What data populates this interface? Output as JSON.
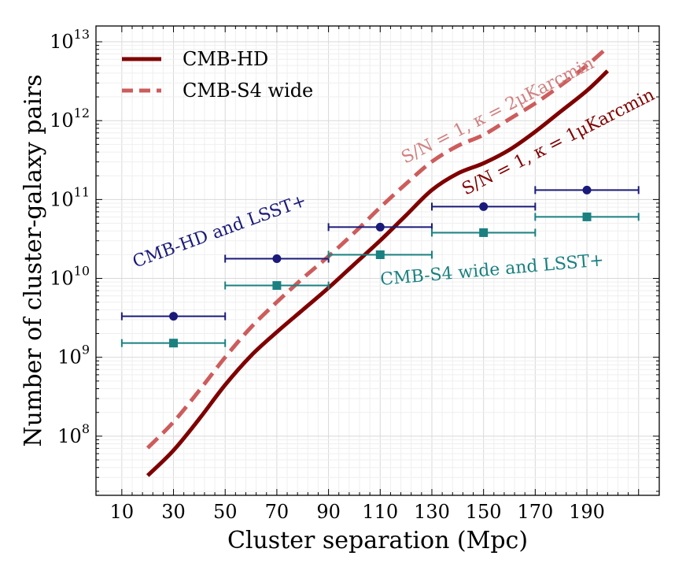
{
  "chart_data": {
    "type": "line",
    "title": "",
    "xlabel": "Cluster separation (Mpc)",
    "ylabel": "Number of cluster-galaxy pairs",
    "xlim": [
      0,
      218
    ],
    "ylim_log10": [
      7.25,
      13.2
    ],
    "yscale": "log",
    "grid": true,
    "legend_position": "top-left",
    "x_ticks": [
      10,
      30,
      50,
      70,
      90,
      110,
      130,
      150,
      170,
      190
    ],
    "y_ticks": [
      {
        "base": "10",
        "exp": "8",
        "value": 8
      },
      {
        "base": "10",
        "exp": "9",
        "value": 9
      },
      {
        "base": "10",
        "exp": "10",
        "value": 10
      },
      {
        "base": "10",
        "exp": "11",
        "value": 11
      },
      {
        "base": "10",
        "exp": "12",
        "value": 12
      },
      {
        "base": "10",
        "exp": "13",
        "value": 13
      }
    ],
    "series": [
      {
        "name": "CMB-HD",
        "style": "solid",
        "color": "#7f0000",
        "x": [
          20,
          30,
          40,
          50,
          60,
          70,
          80,
          90,
          100,
          110,
          120,
          130,
          140,
          150,
          160,
          170,
          180,
          190,
          198
        ],
        "log10": [
          7.5,
          7.82,
          8.22,
          8.65,
          9.02,
          9.32,
          9.6,
          9.88,
          10.18,
          10.48,
          10.8,
          11.12,
          11.33,
          11.46,
          11.63,
          11.86,
          12.12,
          12.38,
          12.63
        ]
      },
      {
        "name": "CMB-S4 wide",
        "style": "dashed",
        "color": "#cd5c5c",
        "x": [
          20,
          30,
          40,
          50,
          60,
          70,
          80,
          90,
          100,
          110,
          120,
          130,
          140,
          150,
          160,
          170,
          180,
          190,
          198
        ],
        "log10": [
          7.85,
          8.18,
          8.58,
          9.0,
          9.38,
          9.7,
          10.0,
          10.28,
          10.58,
          10.9,
          11.2,
          11.48,
          11.68,
          11.82,
          12.02,
          12.22,
          12.45,
          12.7,
          12.93
        ]
      }
    ],
    "errorbar_series": [
      {
        "name": "CMB-HD and LSST+",
        "marker": "circle",
        "color": "#1a1a7a",
        "points": [
          {
            "x": 30,
            "xerr": 20,
            "log10": 9.52
          },
          {
            "x": 70,
            "xerr": 20,
            "log10": 10.25
          },
          {
            "x": 110,
            "xerr": 20,
            "log10": 10.65
          },
          {
            "x": 150,
            "xerr": 20,
            "log10": 10.91
          },
          {
            "x": 190,
            "xerr": 20,
            "log10": 11.12
          }
        ]
      },
      {
        "name": "CMB-S4 wide and LSST+",
        "marker": "square",
        "color": "#1a8080",
        "points": [
          {
            "x": 30,
            "xerr": 20,
            "log10": 9.18
          },
          {
            "x": 70,
            "xerr": 20,
            "log10": 9.91
          },
          {
            "x": 110,
            "xerr": 20,
            "log10": 10.3
          },
          {
            "x": 150,
            "xerr": 20,
            "log10": 10.58
          },
          {
            "x": 190,
            "xerr": 20,
            "log10": 10.78
          }
        ]
      }
    ],
    "annotations": [
      {
        "text": "S/N = 1, κ = 2μKarcmin",
        "color": "#d08080"
      },
      {
        "text": "S/N = 1, κ = 1μKarcmin",
        "color": "#7f0000"
      },
      {
        "text": "CMB-HD and LSST+",
        "color": "#1a1a7a"
      },
      {
        "text": "CMB-S4 wide and LSST+",
        "color": "#1a8080"
      }
    ]
  }
}
